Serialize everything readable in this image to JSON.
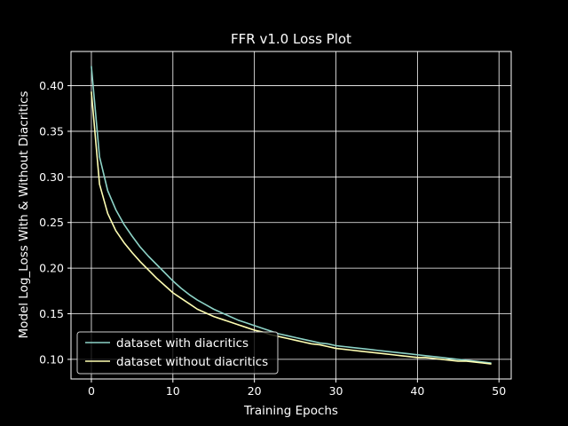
{
  "chart_data": {
    "type": "line",
    "title": "FFR v1.0 Loss Plot",
    "xlabel": "Training Epochs",
    "ylabel": "Model Log_Loss With & Without Diacritics",
    "xlim": [
      -2.5,
      51.5
    ],
    "ylim": [
      0.0785,
      0.4375
    ],
    "xticks": [
      0,
      10,
      20,
      30,
      40,
      50
    ],
    "yticks": [
      0.1,
      0.15,
      0.2,
      0.25,
      0.3,
      0.35,
      0.4
    ],
    "xtick_labels": [
      "0",
      "10",
      "20",
      "30",
      "40",
      "50"
    ],
    "ytick_labels": [
      "0.10",
      "0.15",
      "0.20",
      "0.25",
      "0.30",
      "0.35",
      "0.40"
    ],
    "grid": true,
    "legend_position": "lower-left",
    "x": [
      0,
      1,
      2,
      3,
      4,
      5,
      6,
      7,
      8,
      9,
      10,
      11,
      12,
      13,
      14,
      15,
      16,
      17,
      18,
      19,
      20,
      21,
      22,
      23,
      24,
      25,
      26,
      27,
      28,
      29,
      30,
      31,
      32,
      33,
      34,
      35,
      36,
      37,
      38,
      39,
      40,
      41,
      42,
      43,
      44,
      45,
      46,
      47,
      48,
      49
    ],
    "series": [
      {
        "name": "dataset with diacritics",
        "color": "#8dd3c7",
        "values": [
          0.421,
          0.322,
          0.285,
          0.264,
          0.248,
          0.235,
          0.223,
          0.213,
          0.204,
          0.195,
          0.186,
          0.178,
          0.171,
          0.165,
          0.16,
          0.155,
          0.151,
          0.147,
          0.143,
          0.14,
          0.137,
          0.134,
          0.131,
          0.128,
          0.126,
          0.124,
          0.122,
          0.12,
          0.118,
          0.117,
          0.115,
          0.114,
          0.113,
          0.112,
          0.111,
          0.11,
          0.109,
          0.108,
          0.107,
          0.106,
          0.105,
          0.104,
          0.103,
          0.102,
          0.101,
          0.1,
          0.099,
          0.098,
          0.097,
          0.096
        ]
      },
      {
        "name": "dataset without diacritics",
        "color": "#ffffb3",
        "values": [
          0.393,
          0.292,
          0.26,
          0.241,
          0.228,
          0.217,
          0.207,
          0.198,
          0.189,
          0.181,
          0.173,
          0.167,
          0.161,
          0.155,
          0.151,
          0.147,
          0.144,
          0.141,
          0.138,
          0.135,
          0.132,
          0.13,
          0.127,
          0.125,
          0.123,
          0.121,
          0.119,
          0.117,
          0.116,
          0.114,
          0.112,
          0.111,
          0.11,
          0.109,
          0.108,
          0.107,
          0.106,
          0.105,
          0.104,
          0.103,
          0.102,
          0.102,
          0.101,
          0.1,
          0.099,
          0.098,
          0.098,
          0.097,
          0.096,
          0.095
        ]
      }
    ]
  }
}
